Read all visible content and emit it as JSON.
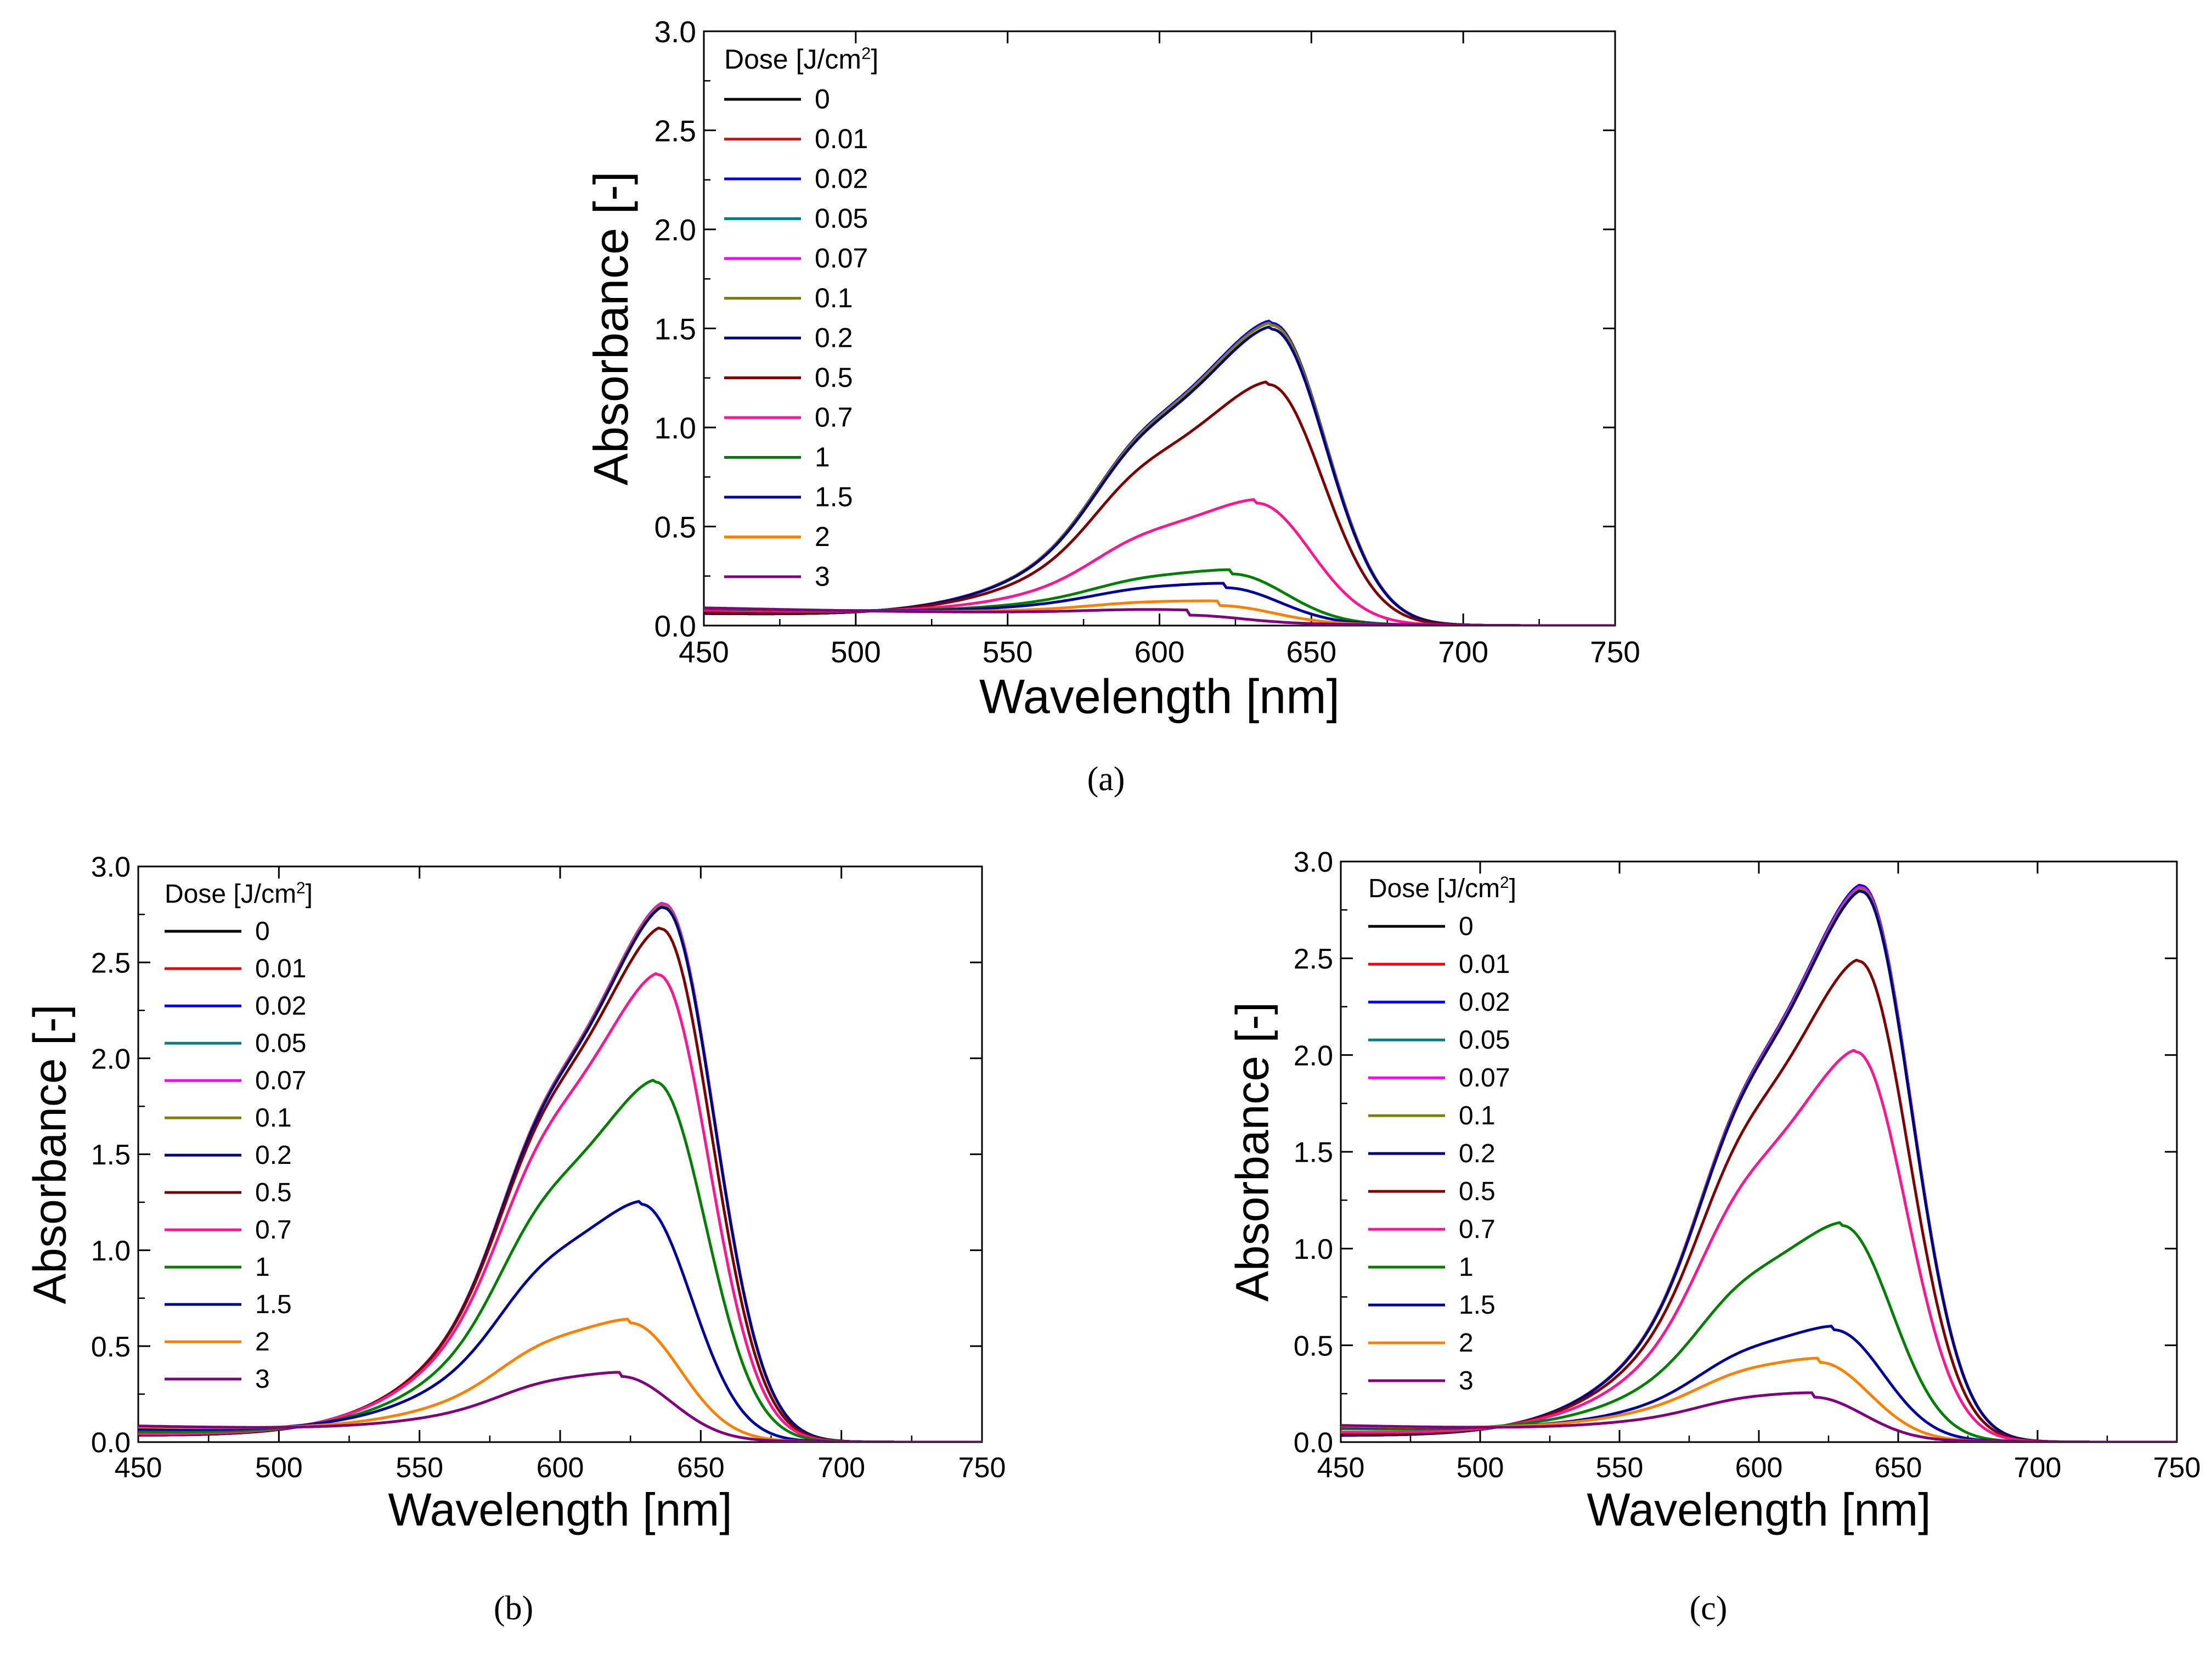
{
  "chart_data": [
    {
      "type": "line",
      "panel": "(a)",
      "xlabel": "Wavelength [nm]",
      "ylabel": "Absorbance [-]",
      "xlim": [
        450,
        750
      ],
      "ylim": [
        0,
        3
      ],
      "xticks": [
        450,
        500,
        550,
        600,
        650,
        700,
        750
      ],
      "yticks": [
        0.0,
        0.5,
        1.0,
        1.5,
        2.0,
        2.5,
        3.0
      ],
      "legend_title": "Dose [J/cm2]",
      "legend_position": "top-left",
      "grid": false,
      "series": [
        {
          "name": "0",
          "color": "#000000",
          "peak": 1.52,
          "center": 637
        },
        {
          "name": "0.01",
          "color": "#ff0000",
          "peak": 1.52,
          "center": 637
        },
        {
          "name": "0.02",
          "color": "#0000ff",
          "peak": 1.52,
          "center": 637
        },
        {
          "name": "0.05",
          "color": "#008080",
          "peak": 1.51,
          "center": 637
        },
        {
          "name": "0.07",
          "color": "#ff00ff",
          "peak": 1.51,
          "center": 637
        },
        {
          "name": "0.1",
          "color": "#808000",
          "peak": 1.51,
          "center": 637
        },
        {
          "name": "0.2",
          "color": "#000080",
          "peak": 1.49,
          "center": 637
        },
        {
          "name": "0.5",
          "color": "#800000",
          "peak": 1.21,
          "center": 636
        },
        {
          "name": "0.7",
          "color": "#ff1493",
          "peak": 0.61,
          "center": 632
        },
        {
          "name": "1",
          "color": "#008000",
          "peak": 0.25,
          "center": 624
        },
        {
          "name": "1.5",
          "color": "#0000a0",
          "peak": 0.18,
          "center": 622
        },
        {
          "name": "2",
          "color": "#ff8000",
          "peak": 0.09,
          "center": 620
        },
        {
          "name": "3",
          "color": "#800080",
          "peak": 0.04,
          "center": 610
        }
      ]
    },
    {
      "type": "line",
      "panel": "(b)",
      "xlabel": "Wavelength [nm]",
      "ylabel": "Absorbance [-]",
      "xlim": [
        450,
        750
      ],
      "ylim": [
        0,
        3
      ],
      "xticks": [
        450,
        500,
        550,
        600,
        650,
        700,
        750
      ],
      "yticks": [
        0.0,
        0.5,
        1.0,
        1.5,
        2.0,
        2.5,
        3.0
      ],
      "legend_title": "Dose [J/cm2]",
      "legend_position": "top-left",
      "grid": false,
      "series": [
        {
          "name": "0",
          "color": "#000000",
          "peak": 2.8,
          "center": 637
        },
        {
          "name": "0.01",
          "color": "#ff0000",
          "peak": 2.8,
          "center": 637
        },
        {
          "name": "0.02",
          "color": "#0000ff",
          "peak": 2.8,
          "center": 637
        },
        {
          "name": "0.05",
          "color": "#008080",
          "peak": 2.8,
          "center": 637
        },
        {
          "name": "0.07",
          "color": "#ff00ff",
          "peak": 2.8,
          "center": 637
        },
        {
          "name": "0.1",
          "color": "#808000",
          "peak": 2.79,
          "center": 637
        },
        {
          "name": "0.2",
          "color": "#000080",
          "peak": 2.78,
          "center": 637
        },
        {
          "name": "0.5",
          "color": "#800000",
          "peak": 2.67,
          "center": 636
        },
        {
          "name": "0.7",
          "color": "#ff1493",
          "peak": 2.43,
          "center": 635
        },
        {
          "name": "1",
          "color": "#008000",
          "peak": 1.87,
          "center": 634
        },
        {
          "name": "1.5",
          "color": "#0000a0",
          "peak": 1.23,
          "center": 629
        },
        {
          "name": "2",
          "color": "#ff8000",
          "peak": 0.61,
          "center": 625
        },
        {
          "name": "3",
          "color": "#800080",
          "peak": 0.33,
          "center": 622
        }
      ]
    },
    {
      "type": "line",
      "panel": "(c)",
      "xlabel": "Wavelength [nm]",
      "ylabel": "Absorbance [-]",
      "xlim": [
        450,
        750
      ],
      "ylim": [
        0,
        3
      ],
      "xticks": [
        450,
        500,
        550,
        600,
        650,
        700,
        750
      ],
      "yticks": [
        0.0,
        0.5,
        1.0,
        1.5,
        2.0,
        2.5,
        3.0
      ],
      "legend_title": "Dose [J/cm2]",
      "legend_position": "top-left",
      "grid": false,
      "series": [
        {
          "name": "0",
          "color": "#000000",
          "peak": 2.87,
          "center": 637
        },
        {
          "name": "0.01",
          "color": "#ff0000",
          "peak": 2.87,
          "center": 637
        },
        {
          "name": "0.02",
          "color": "#0000ff",
          "peak": 2.87,
          "center": 637
        },
        {
          "name": "0.05",
          "color": "#008080",
          "peak": 2.86,
          "center": 637
        },
        {
          "name": "0.07",
          "color": "#ff00ff",
          "peak": 2.86,
          "center": 637
        },
        {
          "name": "0.1",
          "color": "#808000",
          "peak": 2.85,
          "center": 637
        },
        {
          "name": "0.2",
          "color": "#000080",
          "peak": 2.84,
          "center": 637
        },
        {
          "name": "0.5",
          "color": "#800000",
          "peak": 2.48,
          "center": 636
        },
        {
          "name": "0.7",
          "color": "#ff1493",
          "peak": 2.01,
          "center": 635
        },
        {
          "name": "1",
          "color": "#008000",
          "peak": 1.11,
          "center": 630
        },
        {
          "name": "1.5",
          "color": "#0000a0",
          "peak": 0.57,
          "center": 627
        },
        {
          "name": "2",
          "color": "#ff8000",
          "peak": 0.4,
          "center": 622
        },
        {
          "name": "3",
          "color": "#800080",
          "peak": 0.22,
          "center": 620
        }
      ]
    }
  ]
}
